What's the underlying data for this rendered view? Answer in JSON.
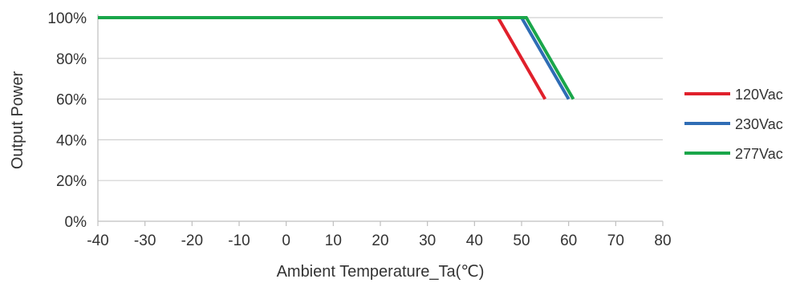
{
  "chart_data": {
    "type": "line",
    "title": "",
    "xlabel": "Ambient Temperature_Ta(℃)",
    "ylabel": "Output Power",
    "xlim": [
      -40,
      80
    ],
    "ylim": [
      0,
      100
    ],
    "x_ticks": [
      -40,
      -30,
      -20,
      -10,
      0,
      10,
      20,
      30,
      40,
      50,
      60,
      70,
      80
    ],
    "y_ticks": [
      0,
      20,
      40,
      60,
      80,
      100
    ],
    "y_tick_labels": [
      "0%",
      "20%",
      "40%",
      "60%",
      "80%",
      "100%"
    ],
    "grid": "horizontal",
    "legend_position": "right",
    "series": [
      {
        "name": "120Vac",
        "color": "#e0202b",
        "points": [
          [
            -40,
            100
          ],
          [
            45,
            100
          ],
          [
            55,
            60
          ]
        ]
      },
      {
        "name": "230Vac",
        "color": "#2f6db5",
        "points": [
          [
            -40,
            100
          ],
          [
            50,
            100
          ],
          [
            60,
            60
          ]
        ]
      },
      {
        "name": "277Vac",
        "color": "#1aa64a",
        "points": [
          [
            -40,
            100
          ],
          [
            51,
            100
          ],
          [
            61,
            60
          ]
        ]
      }
    ]
  }
}
